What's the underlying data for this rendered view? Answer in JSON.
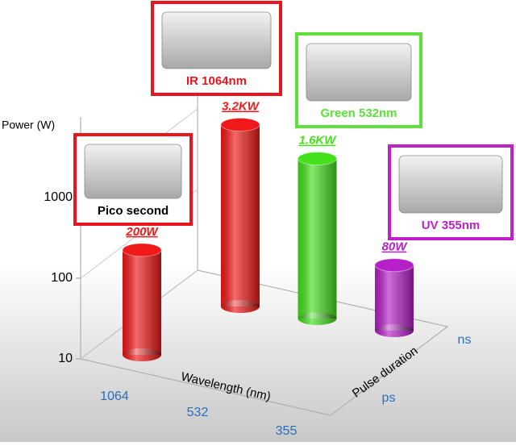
{
  "chart_data": {
    "type": "bar3d",
    "y_label": "Power (W)",
    "log_scale": true,
    "ylim": [
      10,
      10000
    ],
    "yticks": [
      10,
      100,
      1000
    ],
    "x_label": "Wavelength (nm)",
    "x_categories": [
      "1064",
      "532",
      "355"
    ],
    "z_label": "Pulse duration",
    "z_categories": [
      "ps",
      "ns"
    ],
    "bars": [
      {
        "x": "1064",
        "z": "ps",
        "value": 200,
        "value_label": "200W",
        "color": "#f01818"
      },
      {
        "x": "1064",
        "z": "ns",
        "value": 3200,
        "value_label": "3.2KW",
        "color": "#f01818"
      },
      {
        "x": "532",
        "z": "ns",
        "value": 1600,
        "value_label": "1.6KW",
        "color": "#44e01c"
      },
      {
        "x": "355",
        "z": "ns",
        "value": 80,
        "value_label": "80W",
        "color": "#b620c8"
      }
    ],
    "callouts": [
      {
        "text": "IR 1064nm",
        "color": "#e8141e"
      },
      {
        "text": "Green 532nm",
        "color": "#5ee03a"
      },
      {
        "text": "Pico second",
        "color": "#e8141e"
      },
      {
        "text": "UV 355nm",
        "color": "#c020c8"
      }
    ]
  }
}
